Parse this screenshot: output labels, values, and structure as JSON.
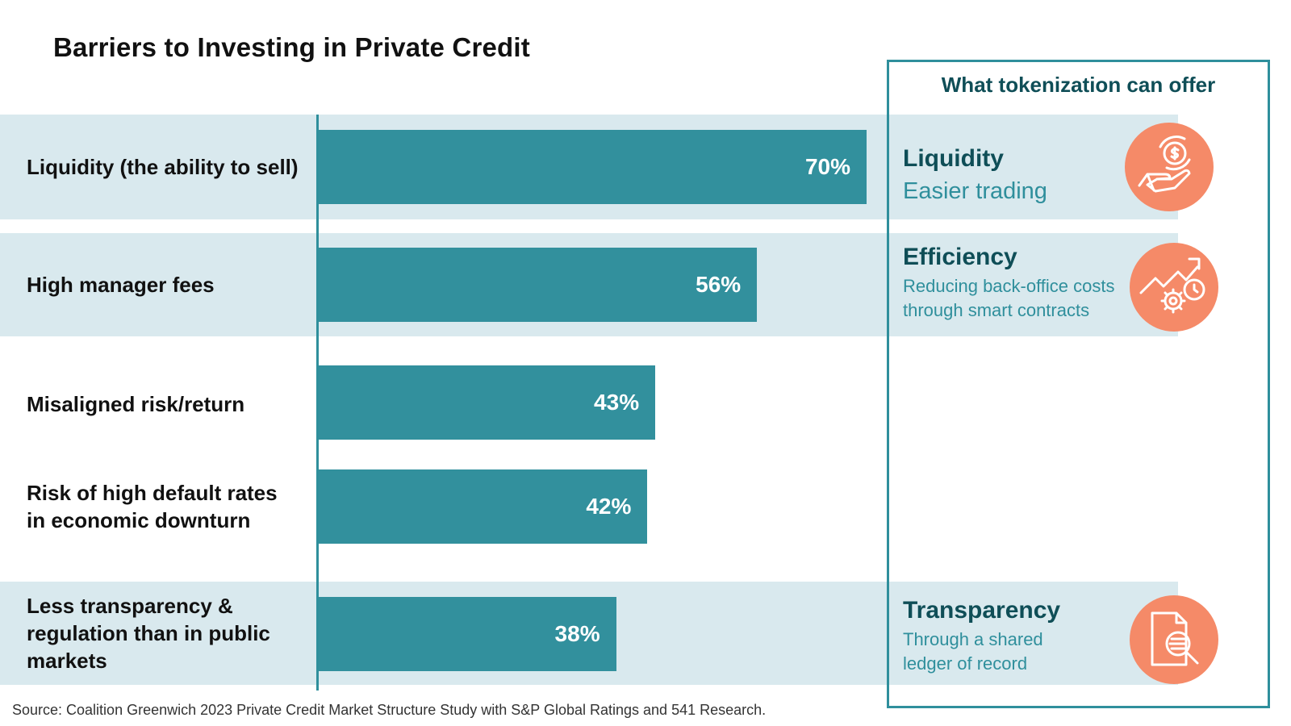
{
  "colors": {
    "bar": "#32909d",
    "band": "#d9e9ee",
    "panel_border": "#2f8f9c",
    "panel_heading": "#0f4e57",
    "offer_text": "#2f8f9c",
    "icon_bg": "#f58a68"
  },
  "chart_data": {
    "type": "bar",
    "orientation": "horizontal",
    "title": "Barriers to Investing in Private Credit",
    "categories": [
      "Liquidity (the ability to sell)",
      "High manager fees",
      "Misaligned risk/return",
      "Risk of high default rates in economic downturn",
      "Less transparency & regulation than in public markets"
    ],
    "values": [
      70,
      56,
      43,
      42,
      38
    ],
    "value_labels": [
      "70%",
      "56%",
      "43%",
      "42%",
      "38%"
    ],
    "unit": "%",
    "xlim": [
      0,
      100
    ],
    "highlighted": [
      true,
      true,
      false,
      false,
      true
    ]
  },
  "panel": {
    "title": "What tokenization can offer",
    "offers": [
      {
        "title": "Liquidity",
        "desc": "Easier trading",
        "icon": "hand-dollar-icon"
      },
      {
        "title": "Efficiency",
        "desc": "Reducing back-office costs through smart contracts",
        "icon": "gears-growth-icon"
      },
      {
        "title": "Transparency",
        "desc": "Through a shared ledger of record",
        "icon": "document-search-icon"
      }
    ]
  },
  "source": "Source: Coalition Greenwich 2023 Private Credit Market Structure Study with S&P Global Ratings and 541 Research."
}
